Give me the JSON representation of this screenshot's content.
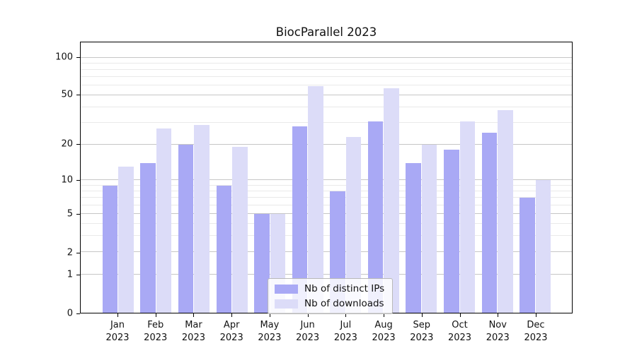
{
  "chart_data": {
    "type": "bar",
    "title": "BiocParallel 2023",
    "categories": [
      "Jan",
      "Feb",
      "Mar",
      "Apr",
      "May",
      "Jun",
      "Jul",
      "Aug",
      "Sep",
      "Oct",
      "Nov",
      "Dec"
    ],
    "category_year": "2023",
    "series": [
      {
        "name": "Nb of distinct IPs",
        "color": "#a9a9f5",
        "values": [
          9,
          14,
          20,
          9,
          5,
          28,
          8,
          31,
          14,
          18,
          25,
          7
        ]
      },
      {
        "name": "Nb of downloads",
        "color": "#dcdcf8",
        "values": [
          13,
          27,
          29,
          19,
          5,
          59,
          23,
          57,
          20,
          31,
          38,
          10
        ]
      }
    ],
    "xlabel": "",
    "ylabel": "",
    "yscale": "log1p",
    "ylim": [
      0,
      131
    ],
    "yticks": [
      0,
      1,
      2,
      5,
      10,
      20,
      50,
      100
    ],
    "minor_gridlines": [
      3,
      4,
      6,
      7,
      8,
      9,
      30,
      40,
      60,
      70,
      80,
      90
    ],
    "grid": true,
    "legend": {
      "position": "lower center",
      "entries": [
        "Nb of distinct IPs",
        "Nb of downloads"
      ]
    }
  },
  "colors": {
    "bar_distinct_ips": "#a9a9f5",
    "bar_downloads": "#dcdcf8",
    "grid_major": "#c6c6c6",
    "grid_minor": "#e9e9e9",
    "axis": "#000000",
    "text": "#111111",
    "legend_border": "#b9b9b9"
  }
}
